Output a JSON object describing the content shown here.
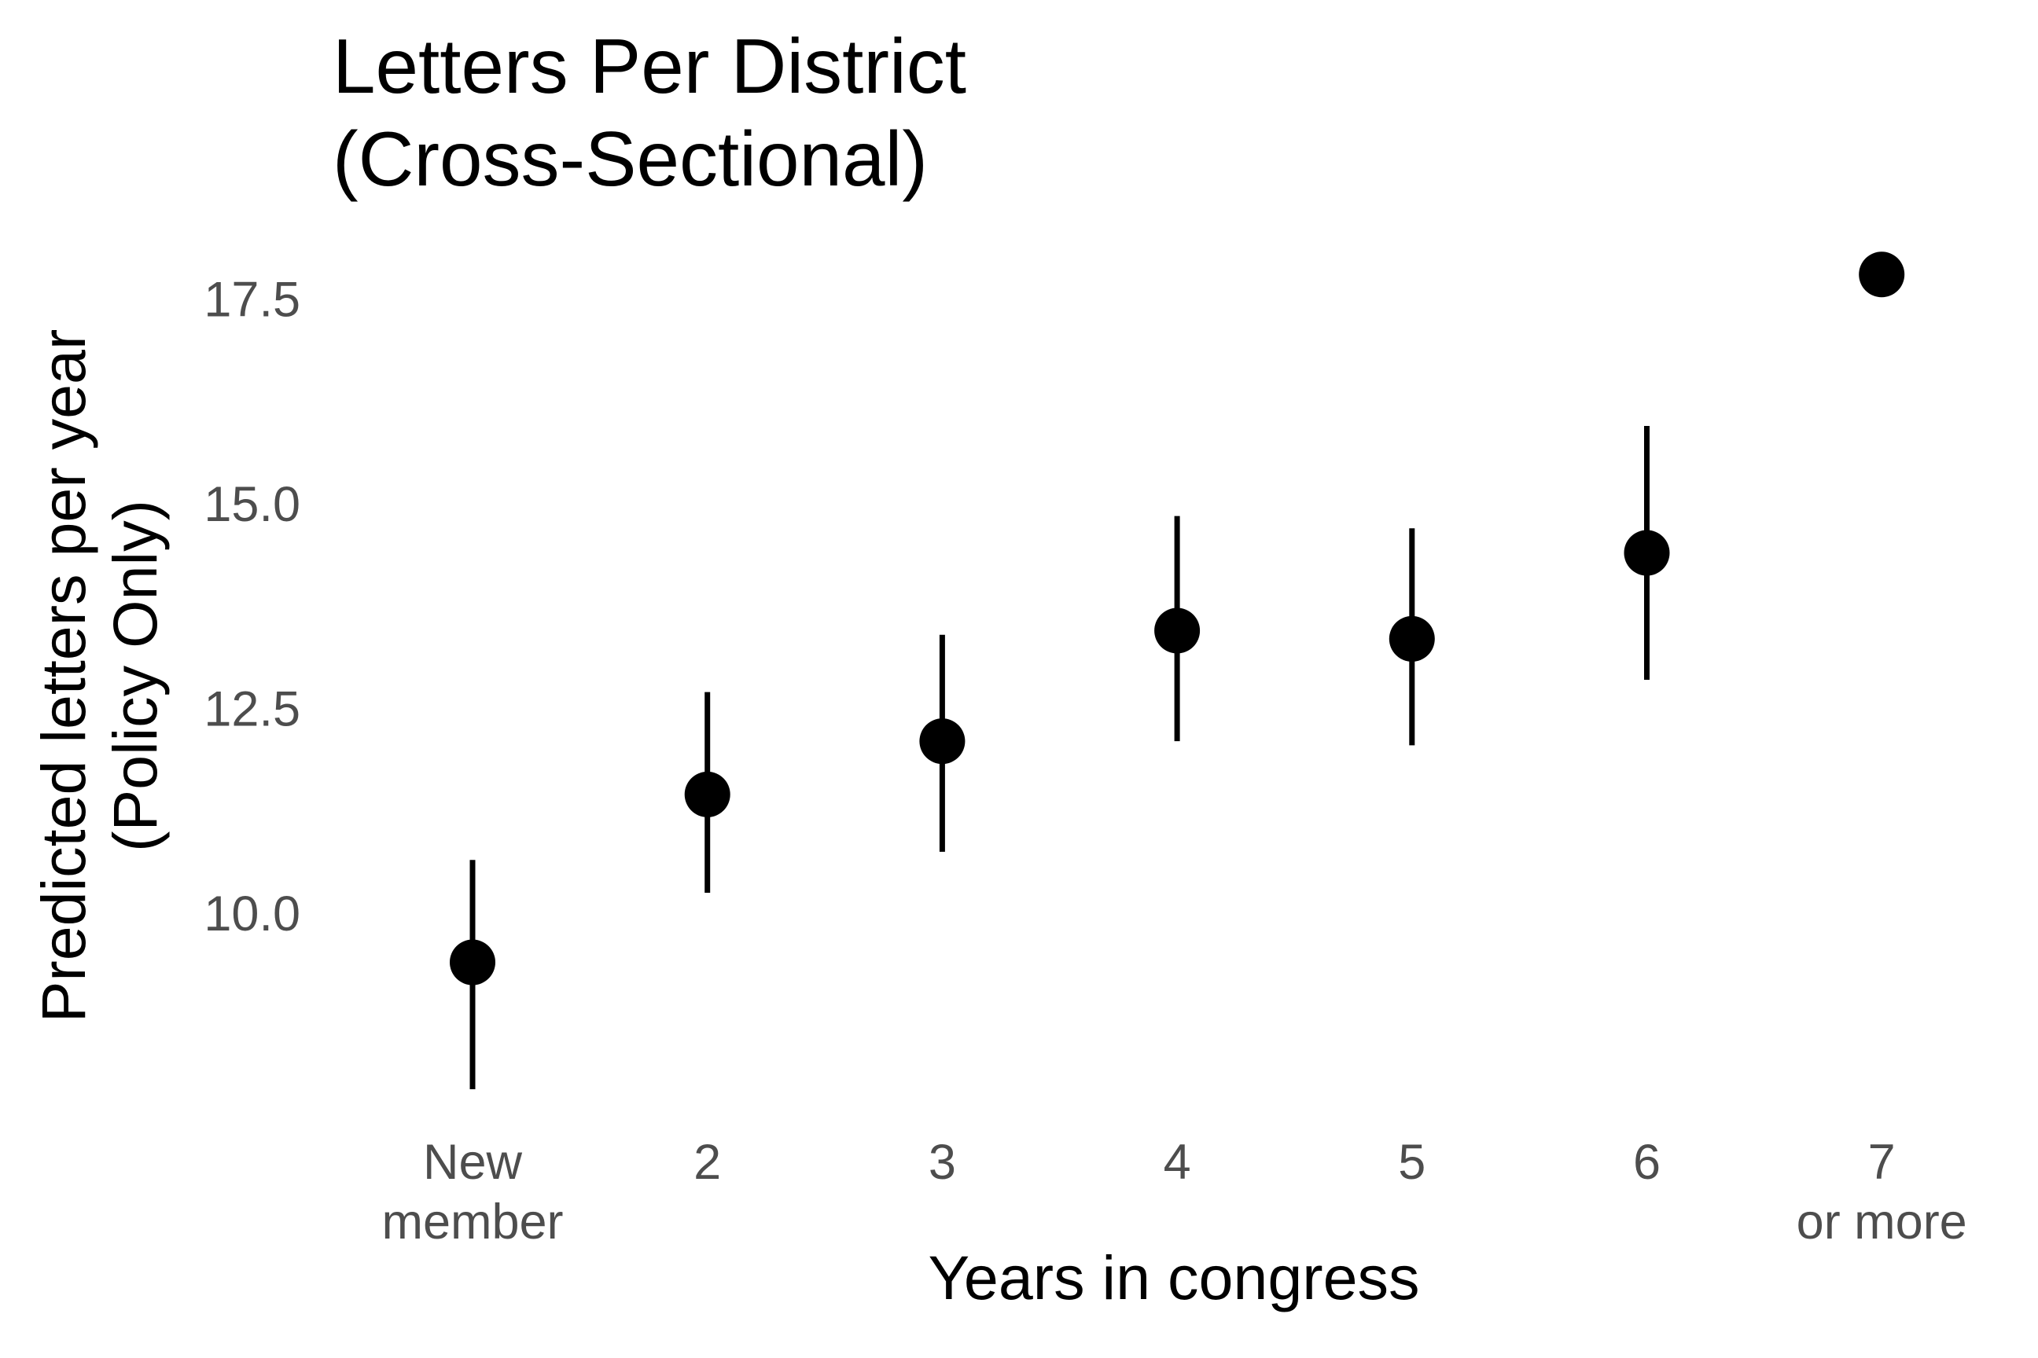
{
  "chart_data": {
    "type": "scatter",
    "title_lines": [
      "Letters Per District",
      "(Cross-Sectional)"
    ],
    "xlabel": "Years in congress",
    "ylabel_lines": [
      "Predicted letters per year",
      "(Policy Only)"
    ],
    "categories": [
      [
        "New",
        "member"
      ],
      [
        "2"
      ],
      [
        "3"
      ],
      [
        "4"
      ],
      [
        "5"
      ],
      [
        "6"
      ],
      [
        "7",
        "or more"
      ]
    ],
    "yticks": [
      "10.0",
      "12.5",
      "15.0",
      "17.5"
    ],
    "ylim": [
      8.0,
      18.0
    ],
    "grid": false,
    "legend": "none",
    "point_color": "#000000",
    "points": [
      {
        "category": "New member",
        "estimate": 9.4,
        "lower": 7.85,
        "upper": 10.65
      },
      {
        "category": "2",
        "estimate": 11.45,
        "lower": 10.25,
        "upper": 12.7
      },
      {
        "category": "3",
        "estimate": 12.1,
        "lower": 10.75,
        "upper": 13.4
      },
      {
        "category": "4",
        "estimate": 13.45,
        "lower": 12.1,
        "upper": 14.85
      },
      {
        "category": "5",
        "estimate": 13.35,
        "lower": 12.05,
        "upper": 14.7
      },
      {
        "category": "6",
        "estimate": 14.4,
        "lower": 12.85,
        "upper": 15.95
      },
      {
        "category": "7 or more",
        "estimate": 17.8,
        "lower": null,
        "upper": null
      }
    ]
  }
}
